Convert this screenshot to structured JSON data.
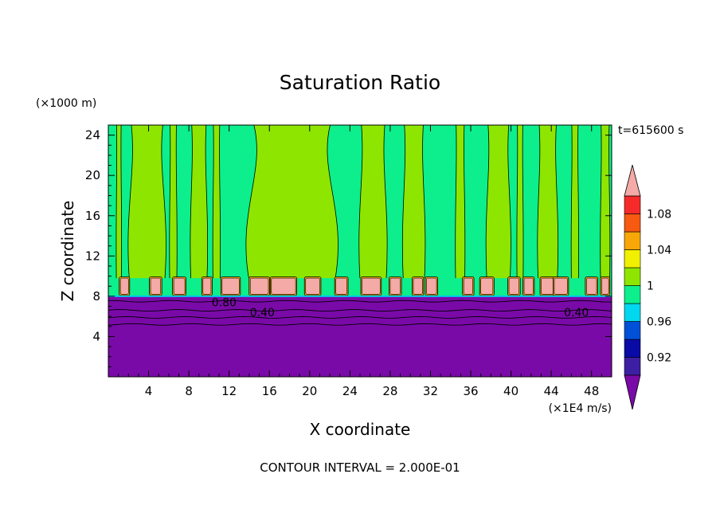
{
  "chart_data": {
    "type": "heatmap",
    "title": "Saturation Ratio",
    "xlabel": "X coordinate",
    "ylabel": "Z coordinate",
    "x_unit": "(×1E4 m/s)",
    "y_unit": "(×1000 m)",
    "time_label": "t=615600 s",
    "footer": "CONTOUR INTERVAL = 2.000E-01",
    "xlim": [
      0,
      50
    ],
    "ylim": [
      0,
      25
    ],
    "x_ticks": [
      4,
      8,
      12,
      16,
      20,
      24,
      28,
      32,
      36,
      40,
      44,
      48
    ],
    "y_ticks": [
      4,
      8,
      12,
      16,
      20,
      24
    ],
    "contour_labels": [
      {
        "text": "0.80",
        "x": 11.5,
        "y": 7.4
      },
      {
        "text": "0.40",
        "x": 15.3,
        "y": 6.4
      },
      {
        "text": "0.40",
        "x": 46.5,
        "y": 6.4
      }
    ],
    "colorbar": {
      "levels": [
        0.9,
        0.92,
        0.94,
        0.96,
        0.98,
        1.0,
        1.02,
        1.04,
        1.06,
        1.08,
        1.1
      ],
      "tick_labels": [
        "0.92",
        "0.96",
        "1",
        "1.04",
        "1.08"
      ],
      "tick_values": [
        0.92,
        0.96,
        1.0,
        1.04,
        1.08
      ],
      "colors": [
        "#3c1fa2",
        "#0a0aa6",
        "#0050d8",
        "#00d8f0",
        "#0cef8c",
        "#8ee600",
        "#f0f000",
        "#f7a808",
        "#f75a10",
        "#f72a2a"
      ],
      "under_color": "#7a0aa8",
      "over_color": "#f4aaa6"
    },
    "field_regions": {
      "low_layer_top": 8,
      "low_layer_value": "<0.9",
      "upper_background_value": "0.98-1.0",
      "moist_columns": [
        {
          "x0": 0.8,
          "x1": 1.3,
          "z0": 9.5,
          "z1": 25
        },
        {
          "x0": 2.1,
          "x1": 5.6,
          "z0": 9.5,
          "z1": 25
        },
        {
          "x0": 6.1,
          "x1": 6.8,
          "z0": 9.5,
          "z1": 25
        },
        {
          "x0": 8.2,
          "x1": 9.8,
          "z0": 9.5,
          "z1": 25
        },
        {
          "x0": 10.4,
          "x1": 11.1,
          "z0": 9.5,
          "z1": 25
        },
        {
          "x0": 14.0,
          "x1": 22.5,
          "z0": 9.5,
          "z1": 25
        },
        {
          "x0": 25.0,
          "x1": 27.6,
          "z0": 9.5,
          "z1": 25
        },
        {
          "x0": 29.3,
          "x1": 31.4,
          "z0": 9.5,
          "z1": 25
        },
        {
          "x0": 34.5,
          "x1": 35.4,
          "z0": 9.5,
          "z1": 25
        },
        {
          "x0": 37.6,
          "x1": 39.9,
          "z0": 9.5,
          "z1": 25
        },
        {
          "x0": 40.6,
          "x1": 41.2,
          "z0": 9.5,
          "z1": 25
        },
        {
          "x0": 42.7,
          "x1": 44.6,
          "z0": 9.5,
          "z1": 25
        },
        {
          "x0": 46.0,
          "x1": 46.7,
          "z0": 9.5,
          "z1": 25
        },
        {
          "x0": 48.9,
          "x1": 49.8,
          "z0": 9.5,
          "z1": 25
        }
      ],
      "supersaturated_cells": [
        {
          "x0": 1.2,
          "x1": 2.0
        },
        {
          "x0": 4.2,
          "x1": 5.2
        },
        {
          "x0": 6.5,
          "x1": 7.6
        },
        {
          "x0": 9.4,
          "x1": 10.2
        },
        {
          "x0": 11.3,
          "x1": 13.0
        },
        {
          "x0": 14.1,
          "x1": 15.9
        },
        {
          "x0": 16.2,
          "x1": 18.6
        },
        {
          "x0": 19.6,
          "x1": 21.0
        },
        {
          "x0": 22.6,
          "x1": 23.7
        },
        {
          "x0": 25.2,
          "x1": 27.0
        },
        {
          "x0": 28.0,
          "x1": 29.0
        },
        {
          "x0": 30.3,
          "x1": 31.2
        },
        {
          "x0": 31.6,
          "x1": 32.6
        },
        {
          "x0": 35.3,
          "x1": 36.2
        },
        {
          "x0": 37.0,
          "x1": 38.2
        },
        {
          "x0": 39.8,
          "x1": 40.8
        },
        {
          "x0": 41.3,
          "x1": 42.2
        },
        {
          "x0": 43.0,
          "x1": 44.2
        },
        {
          "x0": 44.3,
          "x1": 45.6
        },
        {
          "x0": 47.5,
          "x1": 48.5
        },
        {
          "x0": 49.0,
          "x1": 49.7
        }
      ],
      "cell_z": [
        8.2,
        9.8
      ]
    }
  }
}
